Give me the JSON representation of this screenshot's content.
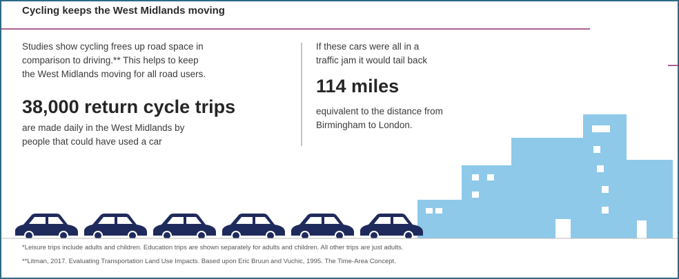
{
  "header": {
    "title": "Cycling keeps the West Midlands moving"
  },
  "left": {
    "intro": [
      "Studies show cycling frees up road space in",
      "comparison to driving.** This helps to keep",
      "the West Midlands moving for all road users."
    ],
    "headline": "38,000 return cycle trips",
    "detail": [
      "are made daily in the West Midlands by",
      "people that could have used a car"
    ]
  },
  "right": {
    "intro": [
      "If these cars were all in a",
      "traffic jam it would tail back"
    ],
    "headline": "114 miles",
    "detail": [
      "equivalent to the distance from",
      "Birmingham to London."
    ]
  },
  "footnotes": [
    "*Leisure trips include adults and children. Education trips are shown separately for adults and children. All other trips are just adults.",
    "**Litman, 2017. Evaluating Transportation Land Use Impacts. Based upon Eric Bruun and Vuchic, 1995. The Time-Area Concept."
  ]
}
